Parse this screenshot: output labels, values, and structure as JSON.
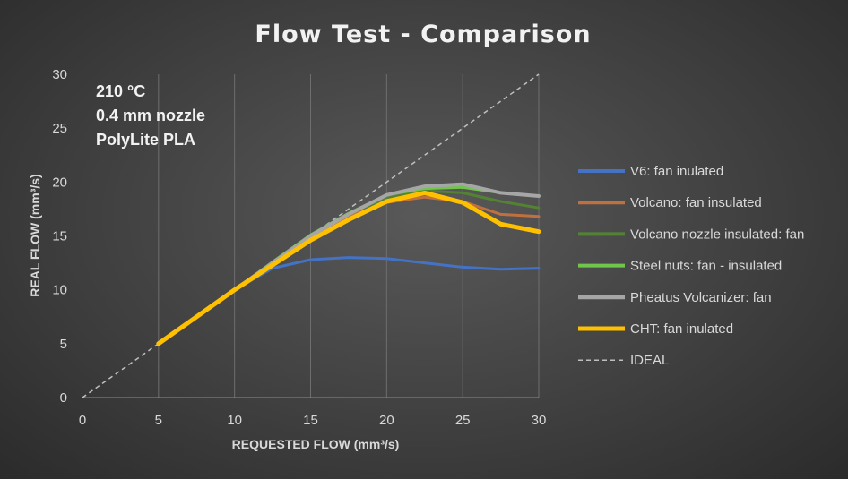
{
  "chart_data": {
    "type": "line",
    "title": "Flow Test - Comparison",
    "xlabel": "REQUESTED FLOW (mm³/s)",
    "ylabel": "REAL FLOW (mm³/s)",
    "xlim": [
      0,
      30
    ],
    "ylim": [
      0,
      30
    ],
    "xticks": [
      "0",
      "5",
      "10",
      "15",
      "20",
      "25",
      "30"
    ],
    "yticks": [
      "0",
      "5",
      "10",
      "15",
      "20",
      "25",
      "30"
    ],
    "grid": "vertical",
    "legend_position": "right",
    "annotations": [
      "210 °C",
      "0.4 mm nozzle",
      "PolyLite PLA"
    ],
    "series": [
      {
        "name": "V6: fan inulated",
        "color": "#4472c4",
        "width": 3,
        "dashed": false,
        "x": [
          5,
          7.5,
          10,
          12.5,
          15,
          17.5,
          20,
          22.5,
          25,
          27.5,
          30
        ],
        "y": [
          5,
          7.5,
          10,
          12,
          12.8,
          13,
          12.9,
          12.5,
          12.1,
          11.9,
          12
        ]
      },
      {
        "name": "Volcano: fan insulated",
        "color": "#c0703e",
        "width": 3,
        "dashed": false,
        "x": [
          5,
          7.5,
          10,
          12.5,
          15,
          17.5,
          20,
          22.5,
          25,
          27.5,
          30
        ],
        "y": [
          5,
          7.5,
          10,
          12.5,
          15,
          16.8,
          18.1,
          18.6,
          18.2,
          17,
          16.8
        ]
      },
      {
        "name": "Volcano nozzle insulated: fan",
        "color": "#548235",
        "width": 3,
        "dashed": false,
        "x": [
          5,
          7.5,
          10,
          12.5,
          15,
          17.5,
          20,
          22.5,
          25,
          27.5,
          30
        ],
        "y": [
          5,
          7.5,
          10,
          12.5,
          15,
          17,
          18.5,
          19.2,
          19,
          18.2,
          17.6
        ]
      },
      {
        "name": "Steel nuts: fan - insulated",
        "color": "#70c64a",
        "width": 3,
        "dashed": false,
        "x": [
          5,
          7.5,
          10,
          12.5,
          15,
          17.5,
          20,
          22.5,
          25,
          27.5,
          30
        ],
        "y": [
          5,
          7.5,
          10,
          12.6,
          15.1,
          17.1,
          18.8,
          19.4,
          19.5,
          19,
          18.7
        ]
      },
      {
        "name": "Pheatus Volcanizer: fan",
        "color": "#a6a6a6",
        "width": 4,
        "dashed": false,
        "x": [
          5,
          7.5,
          10,
          12.5,
          15,
          17.5,
          20,
          22.5,
          25,
          27.5,
          30
        ],
        "y": [
          5,
          7.5,
          10,
          12.5,
          15,
          17,
          18.8,
          19.6,
          19.8,
          19,
          18.7
        ]
      },
      {
        "name": "CHT: fan inulated",
        "color": "#ffc000",
        "width": 5,
        "dashed": false,
        "x": [
          5,
          7.5,
          10,
          12.5,
          15,
          17.5,
          20,
          22.5,
          25,
          27.5,
          30
        ],
        "y": [
          5,
          7.5,
          10,
          12.3,
          14.6,
          16.5,
          18.2,
          19,
          18.1,
          16.1,
          15.4
        ]
      },
      {
        "name": "IDEAL",
        "color": "#bfbfbf",
        "width": 1.5,
        "dashed": true,
        "x": [
          0,
          30
        ],
        "y": [
          0,
          30
        ]
      }
    ]
  }
}
